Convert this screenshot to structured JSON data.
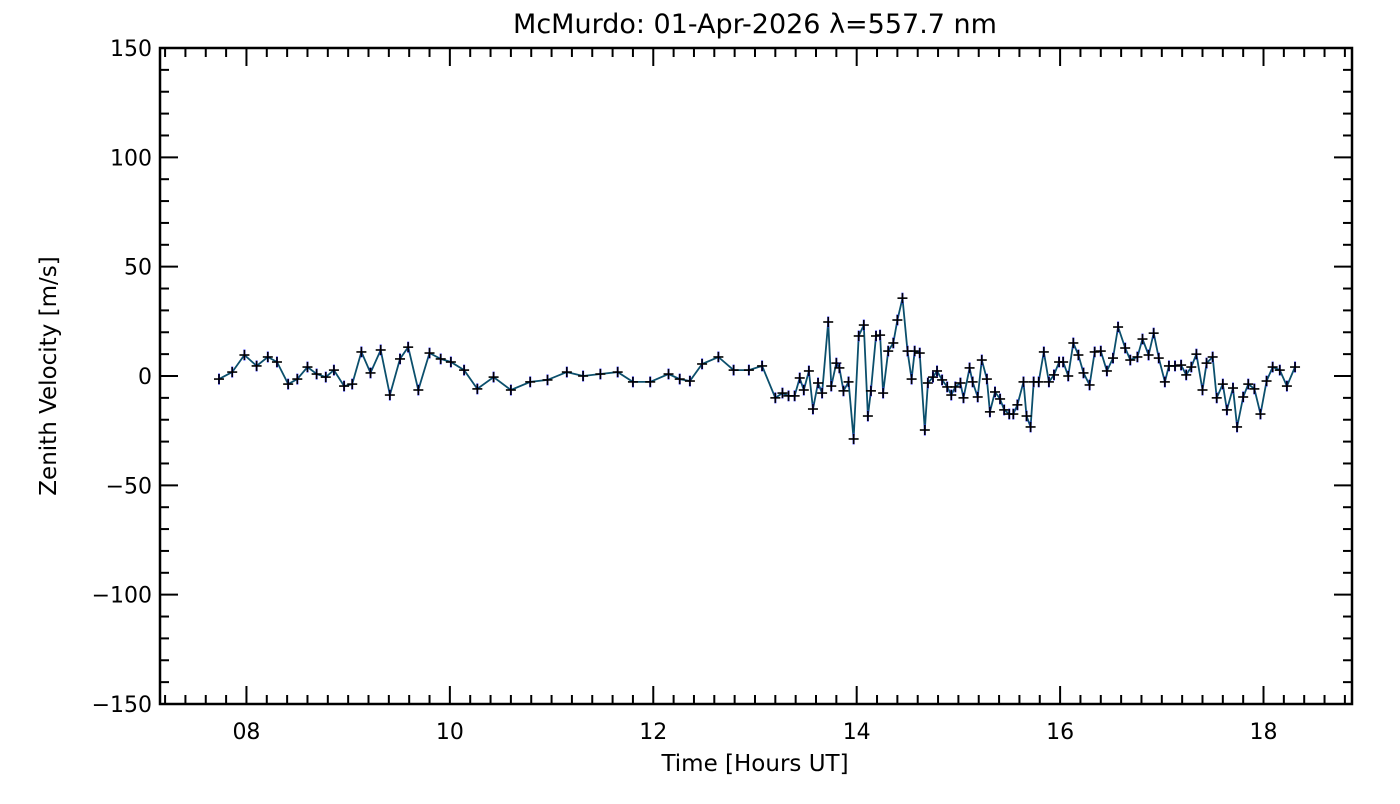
{
  "chart_data": {
    "type": "line",
    "title": "McMurdo: 01-Apr-2026 λ=557.7 nm",
    "xlabel": "Time [Hours UT]",
    "ylabel": "Zenith Velocity [m/s]",
    "xlim": [
      7.15,
      18.87
    ],
    "ylim": [
      -150,
      150
    ],
    "xticks": [
      8,
      10,
      12,
      14,
      16,
      18
    ],
    "xtick_labels": [
      "08",
      "10",
      "12",
      "14",
      "16",
      "18"
    ],
    "yticks": [
      -150,
      -100,
      -50,
      0,
      50,
      100,
      150
    ],
    "ytick_labels": [
      "−150",
      "−100",
      "−50",
      "0",
      "50",
      "100",
      "150"
    ],
    "x_minor_step": 0.2,
    "y_minor_step": 10,
    "grid": false,
    "error_bar": 2.5,
    "colors": {
      "line": "#0b4f6c",
      "marker": "#000000",
      "error": "#2a2aff"
    },
    "series": [
      {
        "name": "Zenith Velocity",
        "x": [
          7.73,
          7.86,
          7.98,
          8.1,
          8.21,
          8.3,
          8.41,
          8.5,
          8.6,
          8.69,
          8.78,
          8.86,
          8.96,
          9.04,
          9.13,
          9.22,
          9.32,
          9.41,
          9.51,
          9.59,
          9.69,
          9.8,
          9.91,
          10.01,
          10.14,
          10.27,
          10.43,
          10.6,
          10.79,
          10.96,
          11.15,
          11.31,
          11.48,
          11.65,
          11.8,
          11.97,
          12.15,
          12.26,
          12.36,
          12.48,
          12.64,
          12.79,
          12.94,
          13.07,
          13.2,
          13.27,
          13.33,
          13.39,
          13.44,
          13.48,
          13.53,
          13.57,
          13.62,
          13.66,
          13.72,
          13.75,
          13.8,
          13.83,
          13.87,
          13.92,
          13.97,
          14.02,
          14.07,
          14.11,
          14.14,
          14.19,
          14.23,
          14.26,
          14.31,
          14.36,
          14.4,
          14.45,
          14.5,
          14.54,
          14.57,
          14.62,
          14.67,
          14.7,
          14.75,
          14.79,
          14.84,
          14.89,
          14.93,
          14.97,
          15.02,
          15.05,
          15.11,
          15.14,
          15.19,
          15.23,
          15.28,
          15.31,
          15.36,
          15.41,
          15.45,
          15.5,
          15.54,
          15.58,
          15.64,
          15.67,
          15.71,
          15.74,
          15.79,
          15.84,
          15.89,
          15.94,
          15.99,
          16.03,
          16.08,
          16.13,
          16.18,
          16.23,
          16.29,
          16.34,
          16.4,
          16.46,
          16.52,
          16.57,
          16.64,
          16.69,
          16.76,
          16.81,
          16.87,
          16.92,
          16.97,
          17.03,
          17.07,
          17.13,
          17.19,
          17.24,
          17.29,
          17.34,
          17.4,
          17.44,
          17.5,
          17.54,
          17.6,
          17.64,
          17.7,
          17.74,
          17.8,
          17.85,
          17.91,
          17.97,
          18.03,
          18.09,
          18.16,
          18.23,
          18.31
        ],
        "y": [
          -1.4,
          1.8,
          9.6,
          4.6,
          8.7,
          6.4,
          -3.7,
          -1.4,
          4.1,
          0.9,
          -0.5,
          2.7,
          -4.6,
          -3.7,
          11.0,
          1.4,
          11.9,
          -8.7,
          7.8,
          13.2,
          -6.4,
          10.5,
          7.8,
          6.4,
          2.7,
          -5.9,
          -0.5,
          -6.4,
          -2.7,
          -1.8,
          1.8,
          0.0,
          0.9,
          1.8,
          -2.7,
          -2.7,
          0.9,
          -1.4,
          -2.3,
          5.5,
          8.7,
          2.7,
          2.7,
          4.6,
          -10.0,
          -7.8,
          -9.1,
          -9.1,
          -0.9,
          -6.4,
          2.3,
          -15.1,
          -3.2,
          -7.8,
          24.7,
          -4.6,
          5.9,
          3.7,
          -6.8,
          -2.7,
          -28.8,
          18.3,
          23.3,
          -18.3,
          -6.8,
          18.3,
          18.7,
          -7.8,
          11.4,
          15.1,
          25.6,
          35.6,
          11.4,
          -1.4,
          11.4,
          10.5,
          -24.7,
          -3.2,
          -0.5,
          2.3,
          -1.8,
          -5.0,
          -8.7,
          -5.0,
          -3.2,
          -10.0,
          3.7,
          -2.7,
          -9.6,
          7.3,
          -1.4,
          -16.4,
          -7.3,
          -10.5,
          -15.5,
          -17.4,
          -17.4,
          -13.2,
          -2.7,
          -18.3,
          -23.3,
          -2.7,
          -2.7,
          11.0,
          -2.7,
          0.5,
          6.4,
          6.4,
          0.0,
          15.1,
          9.6,
          1.4,
          -4.1,
          11.0,
          11.4,
          2.3,
          8.2,
          22.4,
          12.8,
          7.3,
          8.7,
          16.9,
          9.6,
          19.6,
          8.2,
          -2.7,
          4.6,
          4.6,
          5.0,
          0.5,
          4.1,
          10.0,
          -6.4,
          5.9,
          8.7,
          -10.0,
          -3.7,
          -15.5,
          -5.5,
          -23.3,
          -9.6,
          -3.7,
          -5.9,
          -17.4,
          -2.3,
          4.1,
          2.7,
          -4.6,
          4.1
        ]
      }
    ]
  }
}
